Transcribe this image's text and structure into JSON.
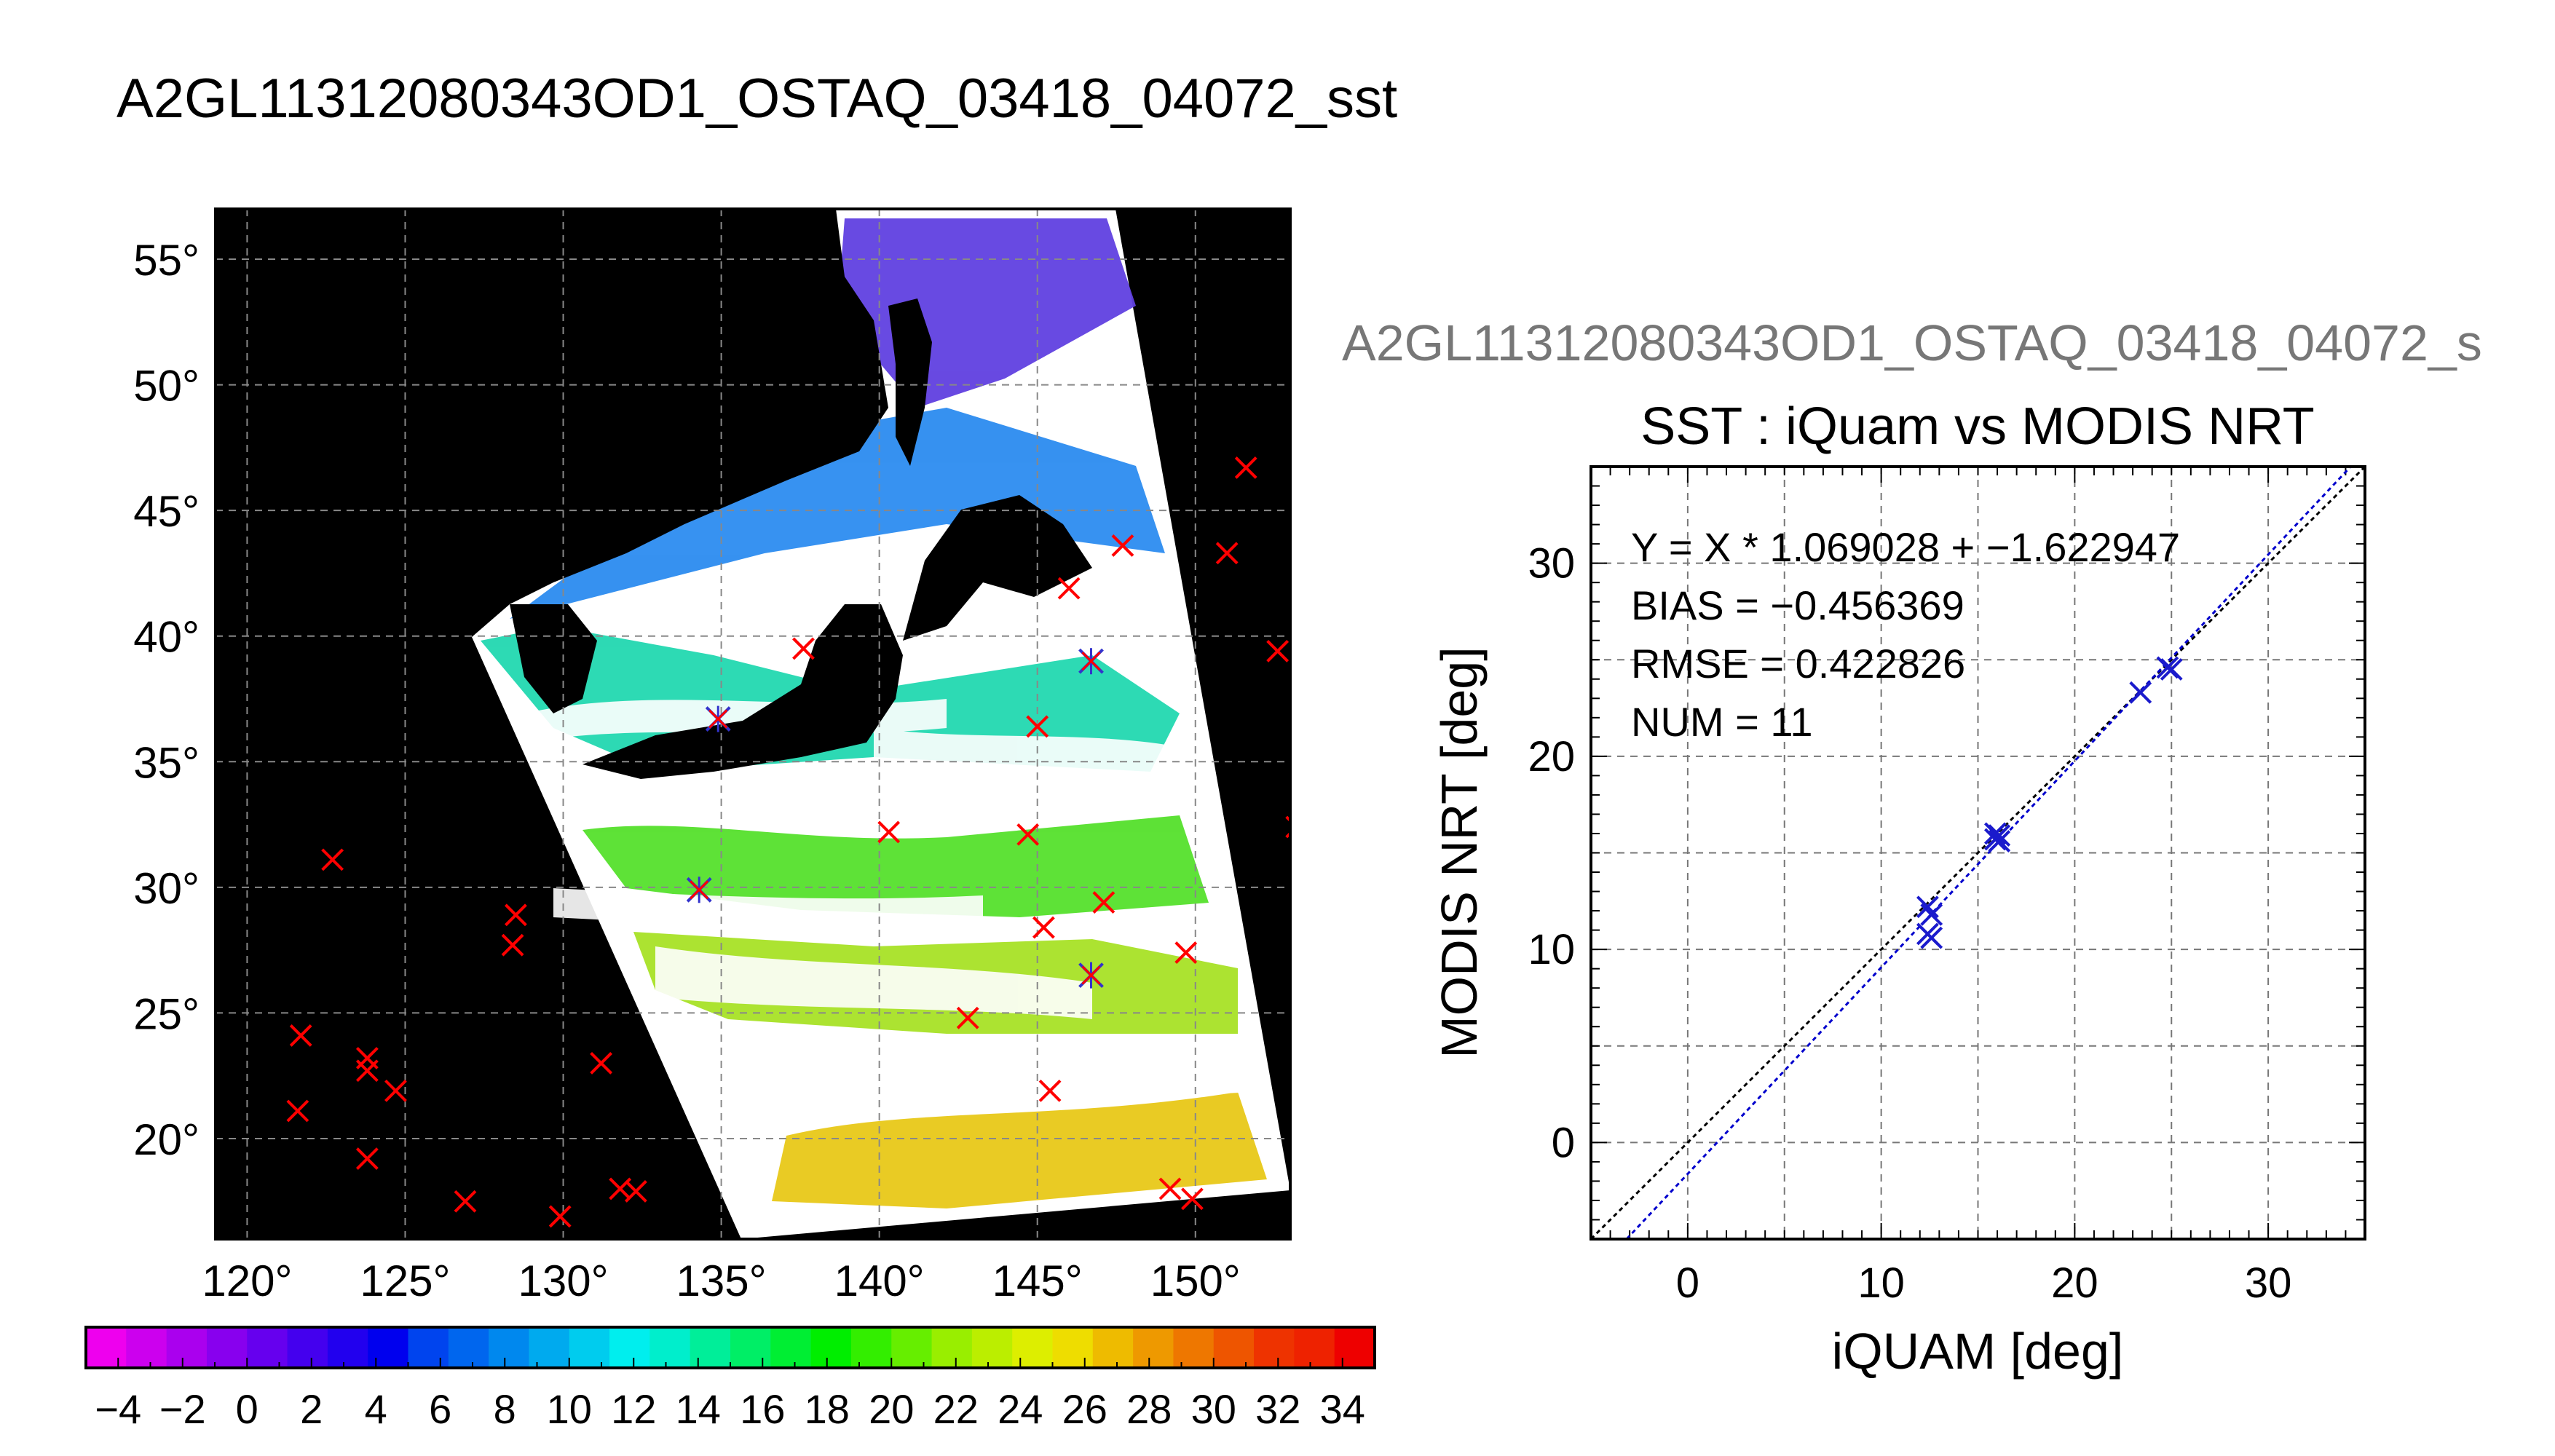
{
  "main_title": "A2GL11312080343OD1_OSTAQ_03418_04072_sst",
  "map": {
    "lat_labels": [
      "55°",
      "50°",
      "45°",
      "40°",
      "35°",
      "30°",
      "25°",
      "20°"
    ],
    "lat_values": [
      55,
      50,
      45,
      40,
      35,
      30,
      25,
      20
    ],
    "lon_labels": [
      "120°",
      "125°",
      "130°",
      "135°",
      "140°",
      "145°",
      "150°"
    ],
    "lon_values": [
      120,
      125,
      130,
      135,
      140,
      145,
      150
    ],
    "lon_range": [
      119,
      153
    ],
    "lat_range": [
      16,
      57
    ],
    "background_color": "#000000",
    "land_color": "#000000",
    "marker_color": "#ff0000",
    "matched_marker_color": "#3333cc"
  },
  "colorbar": {
    "tick_labels": [
      "−4",
      "−2",
      "0",
      "2",
      "4",
      "6",
      "8",
      "10",
      "12",
      "14",
      "16",
      "18",
      "20",
      "22",
      "24",
      "26",
      "28",
      "30",
      "32",
      "34"
    ],
    "min": -5,
    "max": 35,
    "colors": [
      "#ee00ee",
      "#cc00ee",
      "#aa00ee",
      "#8800ee",
      "#6600ee",
      "#4400ee",
      "#2200ee",
      "#0000ee",
      "#0044ee",
      "#0066ee",
      "#0088ee",
      "#00aaee",
      "#00ccee",
      "#00eeee",
      "#00eecc",
      "#00ee99",
      "#00ee66",
      "#00ee33",
      "#00ee00",
      "#33ee00",
      "#66ee00",
      "#99ee00",
      "#bbee00",
      "#ddee00",
      "#eedd00",
      "#eebb00",
      "#ee9900",
      "#ee7700",
      "#ee5500",
      "#ee3300",
      "#ee2200",
      "#ee0000"
    ]
  },
  "scatter_header": "A2GL11312080343OD1_OSTAQ_03418_04072_s",
  "chart_data": {
    "type": "scatter",
    "title": "SST : iQuam vs MODIS NRT",
    "xlabel": "iQUAM [deg]",
    "ylabel": "MODIS NRT [deg]",
    "xlim": [
      -5,
      35
    ],
    "ylim": [
      -5,
      35
    ],
    "x_ticks": [
      0,
      10,
      20,
      30
    ],
    "y_ticks": [
      0,
      10,
      20,
      30
    ],
    "grid": true,
    "stats": [
      "Y = X * 1.069028 + −1.622947",
      "BIAS = −0.456369",
      "RMSE = 0.422826",
      "NUM = 11"
    ],
    "fit": {
      "slope": 1.069028,
      "intercept": -1.622947,
      "color": "#0000cc"
    },
    "identity_color": "#000000",
    "marker_color": "#1a1acc",
    "points": [
      {
        "x": 12.4,
        "y": 12.2
      },
      {
        "x": 12.6,
        "y": 11.8
      },
      {
        "x": 12.4,
        "y": 10.8
      },
      {
        "x": 12.6,
        "y": 10.6
      },
      {
        "x": 15.9,
        "y": 15.7
      },
      {
        "x": 16.1,
        "y": 15.9
      },
      {
        "x": 15.9,
        "y": 16.0
      },
      {
        "x": 16.1,
        "y": 15.6
      },
      {
        "x": 23.4,
        "y": 23.3
      },
      {
        "x": 24.8,
        "y": 24.6
      },
      {
        "x": 25.0,
        "y": 24.5
      }
    ]
  }
}
